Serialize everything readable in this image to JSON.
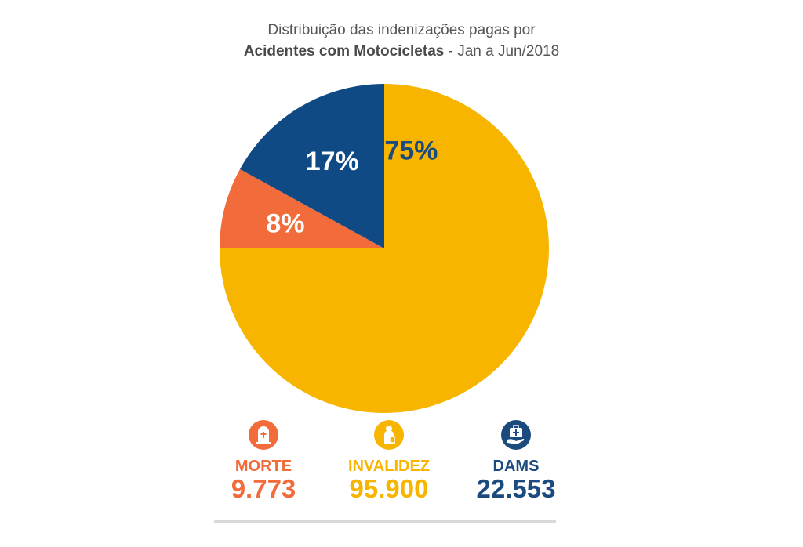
{
  "title": {
    "line1": "Distribuição das indenizações pagas por",
    "line2_bold": "Acidentes com Motocicletas",
    "line2_rest": " - Jan a Jun/2018"
  },
  "chart_data": {
    "type": "pie",
    "title": "Distribuição das indenizações pagas por Acidentes com Motocicletas - Jan a Jun/2018",
    "slices": [
      {
        "label": "INVALIDEZ",
        "percent": 75,
        "percent_label": "75%",
        "value": 95900,
        "value_label": "95.900",
        "color": "#F7B500",
        "label_color": "#1B4A7E"
      },
      {
        "label": "MORTE",
        "percent": 8,
        "percent_label": "8%",
        "value": 9773,
        "value_label": "9.773",
        "color": "#F26B3A",
        "label_color": "#FFFFFF"
      },
      {
        "label": "DAMS",
        "percent": 17,
        "percent_label": "17%",
        "value": 22553,
        "value_label": "22.553",
        "color": "#0F4A85",
        "label_color": "#FFFFFF"
      }
    ],
    "legend_placement": "bottom"
  },
  "legend": [
    {
      "name": "MORTE",
      "value": "9.773",
      "color": "#F26B3A",
      "icon": "tombstone-icon"
    },
    {
      "name": "INVALIDEZ",
      "value": "95.900",
      "color": "#F7B500",
      "icon": "wheelchair-person-icon"
    },
    {
      "name": "DAMS",
      "value": "22.553",
      "color": "#1B4A7E",
      "icon": "medical-kit-icon"
    }
  ]
}
